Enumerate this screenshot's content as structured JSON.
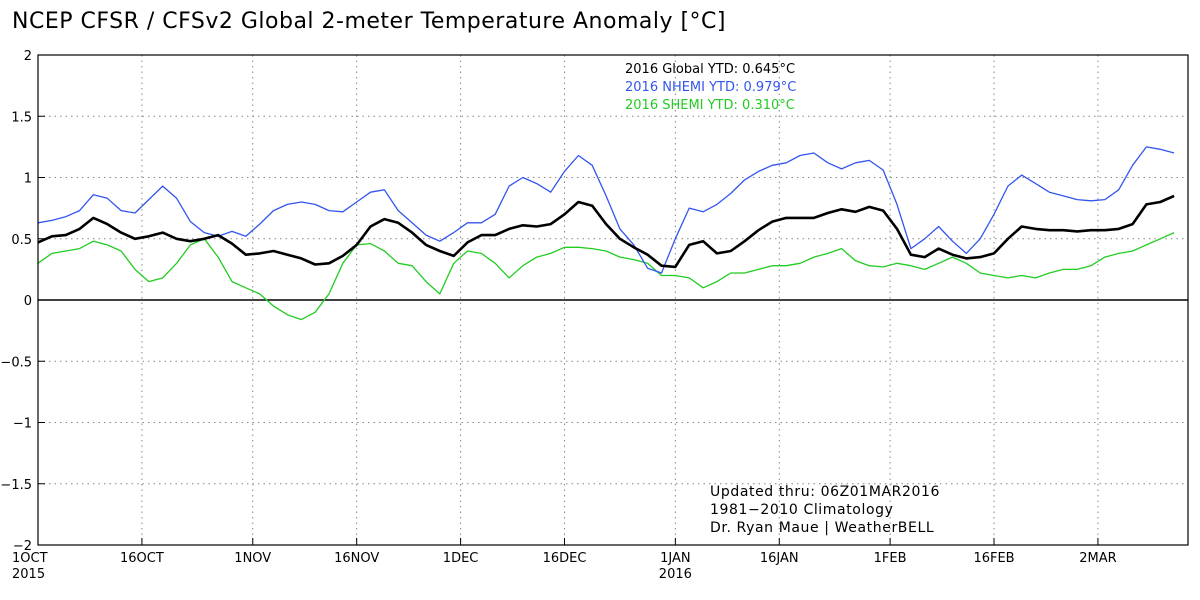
{
  "chart_data": {
    "type": "line",
    "title": "NCEP CFSR / CFSv2 Global 2-meter Temperature Anomaly [°C]",
    "ylim": [
      -2,
      2
    ],
    "yticks": [
      2,
      1.5,
      1,
      0.5,
      0,
      -0.5,
      -1,
      -1.5,
      -2
    ],
    "ytick_labels": [
      "2",
      "1.5",
      "1",
      "0.5",
      "0",
      "−0.5",
      "−1",
      "−1.5",
      "−2"
    ],
    "xlim": [
      "2015-10-01",
      "2016-03-15"
    ],
    "xticks": [
      {
        "date": "2015-10-01",
        "label": "1OCT",
        "sub": "2015"
      },
      {
        "date": "2015-10-16",
        "label": "16OCT",
        "sub": ""
      },
      {
        "date": "2015-11-01",
        "label": "1NOV",
        "sub": ""
      },
      {
        "date": "2015-11-16",
        "label": "16NOV",
        "sub": ""
      },
      {
        "date": "2015-12-01",
        "label": "1DEC",
        "sub": ""
      },
      {
        "date": "2015-12-16",
        "label": "16DEC",
        "sub": ""
      },
      {
        "date": "2016-01-01",
        "label": "1JAN",
        "sub": "2016"
      },
      {
        "date": "2016-01-16",
        "label": "16JAN",
        "sub": ""
      },
      {
        "date": "2016-02-01",
        "label": "1FEB",
        "sub": ""
      },
      {
        "date": "2016-02-16",
        "label": "16FEB",
        "sub": ""
      },
      {
        "date": "2016-03-02",
        "label": "2MAR",
        "sub": ""
      }
    ],
    "grid": true,
    "legend_position": "top-center",
    "legend": [
      {
        "text": "2016 Global YTD: 0.645°C",
        "color": "#000000"
      },
      {
        "text": "2016 NHEMI YTD: 0.979°C",
        "color": "#3355ee"
      },
      {
        "text": "2016 SHEMI YTD: 0.310°C",
        "color": "#22cc22"
      }
    ],
    "annotations": [
      "Updated thru: 06Z01MAR2016",
      "1981−2010 Climatology",
      "Dr. Ryan Maue | WeatherBELL"
    ],
    "series": [
      {
        "color": "#000000",
        "points": [
          [
            "2015-10-01",
            0.47
          ],
          [
            "2015-10-03",
            0.52
          ],
          [
            "2015-10-05",
            0.53
          ],
          [
            "2015-10-07",
            0.58
          ],
          [
            "2015-10-09",
            0.67
          ],
          [
            "2015-10-11",
            0.62
          ],
          [
            "2015-10-13",
            0.55
          ],
          [
            "2015-10-15",
            0.5
          ],
          [
            "2015-10-17",
            0.52
          ],
          [
            "2015-10-19",
            0.55
          ],
          [
            "2015-10-21",
            0.5
          ],
          [
            "2015-10-23",
            0.48
          ],
          [
            "2015-10-25",
            0.5
          ],
          [
            "2015-10-27",
            0.53
          ],
          [
            "2015-10-29",
            0.46
          ],
          [
            "2015-10-31",
            0.37
          ],
          [
            "2015-11-02",
            0.38
          ],
          [
            "2015-11-04",
            0.4
          ],
          [
            "2015-11-06",
            0.37
          ],
          [
            "2015-11-08",
            0.34
          ],
          [
            "2015-11-10",
            0.29
          ],
          [
            "2015-11-12",
            0.3
          ],
          [
            "2015-11-14",
            0.36
          ],
          [
            "2015-11-16",
            0.45
          ],
          [
            "2015-11-18",
            0.6
          ],
          [
            "2015-11-20",
            0.66
          ],
          [
            "2015-11-22",
            0.63
          ],
          [
            "2015-11-24",
            0.55
          ],
          [
            "2015-11-26",
            0.45
          ],
          [
            "2015-11-28",
            0.4
          ],
          [
            "2015-11-30",
            0.36
          ],
          [
            "2015-12-02",
            0.47
          ],
          [
            "2015-12-04",
            0.53
          ],
          [
            "2015-12-06",
            0.53
          ],
          [
            "2015-12-08",
            0.58
          ],
          [
            "2015-12-10",
            0.61
          ],
          [
            "2015-12-12",
            0.6
          ],
          [
            "2015-12-14",
            0.62
          ],
          [
            "2015-12-16",
            0.7
          ],
          [
            "2015-12-18",
            0.8
          ],
          [
            "2015-12-20",
            0.77
          ],
          [
            "2015-12-22",
            0.62
          ],
          [
            "2015-12-24",
            0.5
          ],
          [
            "2015-12-26",
            0.43
          ],
          [
            "2015-12-28",
            0.37
          ],
          [
            "2015-12-30",
            0.28
          ],
          [
            "2016-01-01",
            0.27
          ],
          [
            "2016-01-03",
            0.45
          ],
          [
            "2016-01-05",
            0.48
          ],
          [
            "2016-01-07",
            0.38
          ],
          [
            "2016-01-09",
            0.4
          ],
          [
            "2016-01-11",
            0.48
          ],
          [
            "2016-01-13",
            0.57
          ],
          [
            "2016-01-15",
            0.64
          ],
          [
            "2016-01-17",
            0.67
          ],
          [
            "2016-01-19",
            0.67
          ],
          [
            "2016-01-21",
            0.67
          ],
          [
            "2016-01-23",
            0.71
          ],
          [
            "2016-01-25",
            0.74
          ],
          [
            "2016-01-27",
            0.72
          ],
          [
            "2016-01-29",
            0.76
          ],
          [
            "2016-01-31",
            0.73
          ],
          [
            "2016-02-02",
            0.58
          ],
          [
            "2016-02-04",
            0.37
          ],
          [
            "2016-02-06",
            0.35
          ],
          [
            "2016-02-08",
            0.42
          ],
          [
            "2016-02-10",
            0.37
          ],
          [
            "2016-02-12",
            0.34
          ],
          [
            "2016-02-14",
            0.35
          ],
          [
            "2016-02-16",
            0.38
          ],
          [
            "2016-02-18",
            0.5
          ],
          [
            "2016-02-20",
            0.6
          ],
          [
            "2016-02-22",
            0.58
          ],
          [
            "2016-02-24",
            0.57
          ],
          [
            "2016-02-26",
            0.57
          ],
          [
            "2016-02-28",
            0.56
          ],
          [
            "2016-03-01",
            0.57
          ],
          [
            "2016-03-03",
            0.57
          ],
          [
            "2016-03-05",
            0.58
          ],
          [
            "2016-03-07",
            0.62
          ],
          [
            "2016-03-09",
            0.78
          ],
          [
            "2016-03-11",
            0.8
          ],
          [
            "2016-03-13",
            0.85
          ]
        ]
      },
      {
        "color": "#3355ee",
        "points": [
          [
            "2015-10-01",
            0.63
          ],
          [
            "2015-10-03",
            0.65
          ],
          [
            "2015-10-05",
            0.68
          ],
          [
            "2015-10-07",
            0.73
          ],
          [
            "2015-10-09",
            0.86
          ],
          [
            "2015-10-11",
            0.83
          ],
          [
            "2015-10-13",
            0.73
          ],
          [
            "2015-10-15",
            0.71
          ],
          [
            "2015-10-17",
            0.82
          ],
          [
            "2015-10-19",
            0.93
          ],
          [
            "2015-10-21",
            0.83
          ],
          [
            "2015-10-23",
            0.64
          ],
          [
            "2015-10-25",
            0.55
          ],
          [
            "2015-10-27",
            0.52
          ],
          [
            "2015-10-29",
            0.56
          ],
          [
            "2015-10-31",
            0.52
          ],
          [
            "2015-11-02",
            0.62
          ],
          [
            "2015-11-04",
            0.73
          ],
          [
            "2015-11-06",
            0.78
          ],
          [
            "2015-11-08",
            0.8
          ],
          [
            "2015-11-10",
            0.78
          ],
          [
            "2015-11-12",
            0.73
          ],
          [
            "2015-11-14",
            0.72
          ],
          [
            "2015-11-16",
            0.8
          ],
          [
            "2015-11-18",
            0.88
          ],
          [
            "2015-11-20",
            0.9
          ],
          [
            "2015-11-22",
            0.73
          ],
          [
            "2015-11-24",
            0.63
          ],
          [
            "2015-11-26",
            0.53
          ],
          [
            "2015-11-28",
            0.48
          ],
          [
            "2015-11-30",
            0.55
          ],
          [
            "2015-12-02",
            0.63
          ],
          [
            "2015-12-04",
            0.63
          ],
          [
            "2015-12-06",
            0.7
          ],
          [
            "2015-12-08",
            0.93
          ],
          [
            "2015-12-10",
            1.0
          ],
          [
            "2015-12-12",
            0.95
          ],
          [
            "2015-12-14",
            0.88
          ],
          [
            "2015-12-16",
            1.05
          ],
          [
            "2015-12-18",
            1.18
          ],
          [
            "2015-12-20",
            1.1
          ],
          [
            "2015-12-22",
            0.85
          ],
          [
            "2015-12-24",
            0.58
          ],
          [
            "2015-12-26",
            0.45
          ],
          [
            "2015-12-28",
            0.26
          ],
          [
            "2015-12-30",
            0.22
          ],
          [
            "2016-01-01",
            0.5
          ],
          [
            "2016-01-03",
            0.75
          ],
          [
            "2016-01-05",
            0.72
          ],
          [
            "2016-01-07",
            0.78
          ],
          [
            "2016-01-09",
            0.87
          ],
          [
            "2016-01-11",
            0.98
          ],
          [
            "2016-01-13",
            1.05
          ],
          [
            "2016-01-15",
            1.1
          ],
          [
            "2016-01-17",
            1.12
          ],
          [
            "2016-01-19",
            1.18
          ],
          [
            "2016-01-21",
            1.2
          ],
          [
            "2016-01-23",
            1.12
          ],
          [
            "2016-01-25",
            1.07
          ],
          [
            "2016-01-27",
            1.12
          ],
          [
            "2016-01-29",
            1.14
          ],
          [
            "2016-01-31",
            1.06
          ],
          [
            "2016-02-02",
            0.78
          ],
          [
            "2016-02-04",
            0.42
          ],
          [
            "2016-02-06",
            0.5
          ],
          [
            "2016-02-08",
            0.6
          ],
          [
            "2016-02-10",
            0.48
          ],
          [
            "2016-02-12",
            0.38
          ],
          [
            "2016-02-14",
            0.5
          ],
          [
            "2016-02-16",
            0.7
          ],
          [
            "2016-02-18",
            0.93
          ],
          [
            "2016-02-20",
            1.02
          ],
          [
            "2016-02-22",
            0.95
          ],
          [
            "2016-02-24",
            0.88
          ],
          [
            "2016-02-26",
            0.85
          ],
          [
            "2016-02-28",
            0.82
          ],
          [
            "2016-03-01",
            0.81
          ],
          [
            "2016-03-03",
            0.82
          ],
          [
            "2016-03-05",
            0.9
          ],
          [
            "2016-03-07",
            1.1
          ],
          [
            "2016-03-09",
            1.25
          ],
          [
            "2016-03-11",
            1.23
          ],
          [
            "2016-03-13",
            1.2
          ]
        ]
      },
      {
        "color": "#22cc22",
        "points": [
          [
            "2015-10-01",
            0.3
          ],
          [
            "2015-10-03",
            0.38
          ],
          [
            "2015-10-05",
            0.4
          ],
          [
            "2015-10-07",
            0.42
          ],
          [
            "2015-10-09",
            0.48
          ],
          [
            "2015-10-11",
            0.45
          ],
          [
            "2015-10-13",
            0.4
          ],
          [
            "2015-10-15",
            0.25
          ],
          [
            "2015-10-17",
            0.15
          ],
          [
            "2015-10-19",
            0.18
          ],
          [
            "2015-10-21",
            0.3
          ],
          [
            "2015-10-23",
            0.45
          ],
          [
            "2015-10-25",
            0.5
          ],
          [
            "2015-10-27",
            0.35
          ],
          [
            "2015-10-29",
            0.15
          ],
          [
            "2015-10-31",
            0.1
          ],
          [
            "2015-11-02",
            0.05
          ],
          [
            "2015-11-04",
            -0.05
          ],
          [
            "2015-11-06",
            -0.12
          ],
          [
            "2015-11-08",
            -0.16
          ],
          [
            "2015-11-10",
            -0.1
          ],
          [
            "2015-11-12",
            0.05
          ],
          [
            "2015-11-14",
            0.3
          ],
          [
            "2015-11-16",
            0.45
          ],
          [
            "2015-11-18",
            0.46
          ],
          [
            "2015-11-20",
            0.4
          ],
          [
            "2015-11-22",
            0.3
          ],
          [
            "2015-11-24",
            0.28
          ],
          [
            "2015-11-26",
            0.15
          ],
          [
            "2015-11-28",
            0.05
          ],
          [
            "2015-11-30",
            0.3
          ],
          [
            "2015-12-02",
            0.4
          ],
          [
            "2015-12-04",
            0.38
          ],
          [
            "2015-12-06",
            0.3
          ],
          [
            "2015-12-08",
            0.18
          ],
          [
            "2015-12-10",
            0.28
          ],
          [
            "2015-12-12",
            0.35
          ],
          [
            "2015-12-14",
            0.38
          ],
          [
            "2015-12-16",
            0.43
          ],
          [
            "2015-12-18",
            0.43
          ],
          [
            "2015-12-20",
            0.42
          ],
          [
            "2015-12-22",
            0.4
          ],
          [
            "2015-12-24",
            0.35
          ],
          [
            "2015-12-26",
            0.33
          ],
          [
            "2015-12-28",
            0.3
          ],
          [
            "2015-12-30",
            0.2
          ],
          [
            "2016-01-01",
            0.2
          ],
          [
            "2016-01-03",
            0.18
          ],
          [
            "2016-01-05",
            0.1
          ],
          [
            "2016-01-07",
            0.15
          ],
          [
            "2016-01-09",
            0.22
          ],
          [
            "2016-01-11",
            0.22
          ],
          [
            "2016-01-13",
            0.25
          ],
          [
            "2016-01-15",
            0.28
          ],
          [
            "2016-01-17",
            0.28
          ],
          [
            "2016-01-19",
            0.3
          ],
          [
            "2016-01-21",
            0.35
          ],
          [
            "2016-01-23",
            0.38
          ],
          [
            "2016-01-25",
            0.42
          ],
          [
            "2016-01-27",
            0.32
          ],
          [
            "2016-01-29",
            0.28
          ],
          [
            "2016-01-31",
            0.27
          ],
          [
            "2016-02-02",
            0.3
          ],
          [
            "2016-02-04",
            0.28
          ],
          [
            "2016-02-06",
            0.25
          ],
          [
            "2016-02-08",
            0.3
          ],
          [
            "2016-02-10",
            0.35
          ],
          [
            "2016-02-12",
            0.3
          ],
          [
            "2016-02-14",
            0.22
          ],
          [
            "2016-02-16",
            0.2
          ],
          [
            "2016-02-18",
            0.18
          ],
          [
            "2016-02-20",
            0.2
          ],
          [
            "2016-02-22",
            0.18
          ],
          [
            "2016-02-24",
            0.22
          ],
          [
            "2016-02-26",
            0.25
          ],
          [
            "2016-02-28",
            0.25
          ],
          [
            "2016-03-01",
            0.28
          ],
          [
            "2016-03-03",
            0.35
          ],
          [
            "2016-03-05",
            0.38
          ],
          [
            "2016-03-07",
            0.4
          ],
          [
            "2016-03-09",
            0.45
          ],
          [
            "2016-03-11",
            0.5
          ],
          [
            "2016-03-13",
            0.55
          ]
        ]
      }
    ]
  }
}
